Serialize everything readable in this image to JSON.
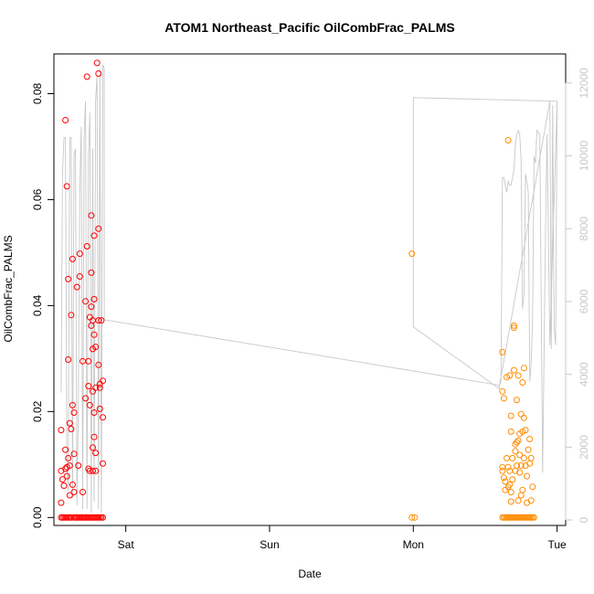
{
  "chart_data": {
    "type": "scatter",
    "title": "ATOM1 Northeast_Pacific OilCombFrac_PALMS",
    "xlabel": "Date",
    "ylabel": "OilCombFrac_PALMS",
    "x_ticks": [
      {
        "value": 2.0,
        "label": "Sat"
      },
      {
        "value": 3.0,
        "label": "Sun"
      },
      {
        "value": 4.0,
        "label": "Mon"
      },
      {
        "value": 5.0,
        "label": "Tue"
      }
    ],
    "xlim": [
      1.5,
      5.06
    ],
    "ylim": [
      -0.0015,
      0.0875
    ],
    "y_ticks": [
      0.0,
      0.02,
      0.04,
      0.06,
      0.08
    ],
    "y_tick_labels": [
      "0.00",
      "0.02",
      "0.04",
      "0.06",
      "0.08"
    ],
    "y2lim": [
      -150,
      12800
    ],
    "y2_ticks": [
      0,
      2000,
      4000,
      6000,
      8000,
      10000,
      12000
    ],
    "y2_tick_labels": [
      "0",
      "2000",
      "4000",
      "6000",
      "8000",
      "10000",
      "12000"
    ],
    "colors": {
      "series_early": "#ff0000",
      "series_late": "#ff8c00",
      "altitude": "#c8c8c8",
      "axis": "#000000",
      "axis_right": "#c8c8c8"
    },
    "series": [
      {
        "color_key": "series_early",
        "points": [
          [
            1.55,
            0.0165
          ],
          [
            1.55,
            0.0088
          ],
          [
            1.56,
            0.0072
          ],
          [
            1.55,
            0.0028
          ],
          [
            1.57,
            0.006
          ],
          [
            1.58,
            0.0092
          ],
          [
            1.58,
            0.0128
          ],
          [
            1.59,
            0.0095
          ],
          [
            1.59,
            0.0078
          ],
          [
            1.58,
            0.075
          ],
          [
            1.59,
            0.0625
          ],
          [
            1.6,
            0.0298
          ],
          [
            1.6,
            0.045
          ],
          [
            1.6,
            0.0112
          ],
          [
            1.61,
            0.0098
          ],
          [
            1.61,
            0.0042
          ],
          [
            1.61,
            0.0178
          ],
          [
            1.62,
            0.0167
          ],
          [
            1.62,
            0.0382
          ],
          [
            1.63,
            0.0488
          ],
          [
            1.63,
            0.0212
          ],
          [
            1.64,
            0.0198
          ],
          [
            1.63,
            0.0062
          ],
          [
            1.64,
            0.012
          ],
          [
            1.64,
            0.0048
          ],
          [
            1.66,
            0.0435
          ],
          [
            1.67,
            0.0098
          ],
          [
            1.68,
            0.0455
          ],
          [
            1.68,
            0.0498
          ],
          [
            1.7,
            0.0295
          ],
          [
            1.7,
            0.0048
          ],
          [
            1.72,
            0.0408
          ],
          [
            1.72,
            0.0225
          ],
          [
            1.73,
            0.0832
          ],
          [
            1.73,
            0.0512
          ],
          [
            1.74,
            0.0295
          ],
          [
            1.74,
            0.0248
          ],
          [
            1.74,
            0.0092
          ],
          [
            1.75,
            0.0378
          ],
          [
            1.75,
            0.0088
          ],
          [
            1.75,
            0.0212
          ],
          [
            1.76,
            0.057
          ],
          [
            1.76,
            0.0462
          ],
          [
            1.76,
            0.0398
          ],
          [
            1.76,
            0.0362
          ],
          [
            1.77,
            0.0372
          ],
          [
            1.77,
            0.0318
          ],
          [
            1.77,
            0.0238
          ],
          [
            1.77,
            0.0132
          ],
          [
            1.77,
            0.0088
          ],
          [
            1.78,
            0.0532
          ],
          [
            1.78,
            0.0412
          ],
          [
            1.78,
            0.0345
          ],
          [
            1.78,
            0.0198
          ],
          [
            1.78,
            0.0152
          ],
          [
            1.79,
            0.0322
          ],
          [
            1.79,
            0.0245
          ],
          [
            1.79,
            0.0122
          ],
          [
            1.79,
            0.0088
          ],
          [
            1.8,
            0.0858
          ],
          [
            1.81,
            0.0838
          ],
          [
            1.81,
            0.0545
          ],
          [
            1.81,
            0.0372
          ],
          [
            1.81,
            0.0288
          ],
          [
            1.82,
            0.0252
          ],
          [
            1.82,
            0.0245
          ],
          [
            1.82,
            0.0205
          ],
          [
            1.83,
            0.0372
          ],
          [
            1.84,
            0.0258
          ],
          [
            1.84,
            0.0102
          ],
          [
            1.84,
            0.0189
          ],
          [
            1.84,
            0.0
          ],
          [
            1.55,
            0.0
          ],
          [
            1.56,
            0.0
          ],
          [
            1.57,
            0.0
          ],
          [
            1.58,
            0.0
          ],
          [
            1.59,
            0.0
          ],
          [
            1.6,
            0.0
          ],
          [
            1.61,
            0.0
          ],
          [
            1.62,
            0.0
          ],
          [
            1.64,
            0.0
          ],
          [
            1.65,
            0.0
          ],
          [
            1.66,
            0.0
          ],
          [
            1.67,
            0.0
          ],
          [
            1.68,
            0.0
          ],
          [
            1.69,
            0.0
          ],
          [
            1.7,
            0.0
          ],
          [
            1.71,
            0.0
          ],
          [
            1.72,
            0.0
          ],
          [
            1.73,
            0.0
          ],
          [
            1.74,
            0.0
          ],
          [
            1.75,
            0.0
          ],
          [
            1.76,
            0.0
          ],
          [
            1.77,
            0.0
          ],
          [
            1.78,
            0.0
          ],
          [
            1.79,
            0.0
          ],
          [
            1.8,
            0.0
          ],
          [
            1.81,
            0.0
          ],
          [
            1.82,
            0.0
          ],
          [
            1.83,
            0.0
          ]
        ]
      },
      {
        "color_key": "series_late",
        "points": [
          [
            3.99,
            0.0498
          ],
          [
            3.99,
            0.0
          ],
          [
            4.01,
            0.0
          ],
          [
            4.62,
            0.0312
          ],
          [
            4.62,
            0.0238
          ],
          [
            4.63,
            0.0225
          ],
          [
            4.62,
            0.0095
          ],
          [
            4.62,
            0.0088
          ],
          [
            4.63,
            0.0075
          ],
          [
            4.64,
            0.0068
          ],
          [
            4.64,
            0.0052
          ],
          [
            4.65,
            0.0265
          ],
          [
            4.65,
            0.0112
          ],
          [
            4.66,
            0.0712
          ],
          [
            4.66,
            0.0095
          ],
          [
            4.66,
            0.0058
          ],
          [
            4.67,
            0.0268
          ],
          [
            4.67,
            0.0088
          ],
          [
            4.67,
            0.0062
          ],
          [
            4.68,
            0.0192
          ],
          [
            4.68,
            0.0162
          ],
          [
            4.68,
            0.0048
          ],
          [
            4.68,
            0.003
          ],
          [
            4.69,
            0.0112
          ],
          [
            4.69,
            0.0072
          ],
          [
            4.7,
            0.0358
          ],
          [
            4.7,
            0.0362
          ],
          [
            4.7,
            0.0278
          ],
          [
            4.71,
            0.0138
          ],
          [
            4.71,
            0.0125
          ],
          [
            4.71,
            0.0088
          ],
          [
            4.72,
            0.0222
          ],
          [
            4.72,
            0.0142
          ],
          [
            4.72,
            0.0098
          ],
          [
            4.73,
            0.0268
          ],
          [
            4.73,
            0.0145
          ],
          [
            4.73,
            0.0032
          ],
          [
            4.74,
            0.0158
          ],
          [
            4.74,
            0.0118
          ],
          [
            4.74,
            0.0085
          ],
          [
            4.75,
            0.0195
          ],
          [
            4.75,
            0.0098
          ],
          [
            4.75,
            0.0042
          ],
          [
            4.76,
            0.0255
          ],
          [
            4.76,
            0.0162
          ],
          [
            4.76,
            0.0052
          ],
          [
            4.77,
            0.0282
          ],
          [
            4.77,
            0.0188
          ],
          [
            4.77,
            0.0112
          ],
          [
            4.78,
            0.0165
          ],
          [
            4.78,
            0.0098
          ],
          [
            4.79,
            0.0078
          ],
          [
            4.79,
            0.0028
          ],
          [
            4.8,
            0.0128
          ],
          [
            4.81,
            0.0102
          ],
          [
            4.81,
            0.0148
          ],
          [
            4.82,
            0.0032
          ],
          [
            4.82,
            0.0112
          ],
          [
            4.83,
            0.0058
          ],
          [
            4.62,
            0.0
          ],
          [
            4.63,
            0.0
          ],
          [
            4.64,
            0.0
          ],
          [
            4.65,
            0.0
          ],
          [
            4.66,
            0.0
          ],
          [
            4.67,
            0.0
          ],
          [
            4.68,
            0.0
          ],
          [
            4.69,
            0.0
          ],
          [
            4.7,
            0.0
          ],
          [
            4.71,
            0.0
          ],
          [
            4.72,
            0.0
          ],
          [
            4.73,
            0.0
          ],
          [
            4.74,
            0.0
          ],
          [
            4.75,
            0.0
          ],
          [
            4.76,
            0.0
          ],
          [
            4.77,
            0.0
          ],
          [
            4.78,
            0.0
          ],
          [
            4.79,
            0.0
          ],
          [
            4.8,
            0.0
          ],
          [
            4.81,
            0.0
          ],
          [
            4.82,
            0.0
          ],
          [
            4.83,
            0.0
          ],
          [
            4.84,
            0.0
          ]
        ]
      }
    ],
    "altitude_line": [
      [
        1.55,
        3500
      ],
      [
        1.56,
        9500
      ],
      [
        1.57,
        10500
      ],
      [
        1.58,
        10500
      ],
      [
        1.59,
        1500
      ],
      [
        1.6,
        800
      ],
      [
        1.61,
        10500
      ],
      [
        1.62,
        10500
      ],
      [
        1.63,
        600
      ],
      [
        1.64,
        10000
      ],
      [
        1.65,
        10200
      ],
      [
        1.66,
        400
      ],
      [
        1.67,
        3000
      ],
      [
        1.68,
        9000
      ],
      [
        1.69,
        10800
      ],
      [
        1.7,
        300
      ],
      [
        1.71,
        10500
      ],
      [
        1.72,
        11500
      ],
      [
        1.73,
        300
      ],
      [
        1.74,
        10000
      ],
      [
        1.75,
        11200
      ],
      [
        1.76,
        200
      ],
      [
        1.77,
        10200
      ],
      [
        1.78,
        500
      ],
      [
        1.79,
        11500
      ],
      [
        1.8,
        12200
      ],
      [
        1.81,
        300
      ],
      [
        1.82,
        12400
      ],
      [
        1.83,
        200
      ],
      [
        1.84,
        12500
      ],
      [
        1.85,
        12400
      ],
      [
        1.85,
        5500
      ],
      [
        4.6,
        3700
      ],
      [
        4.6,
        3600
      ],
      [
        4.0,
        5300
      ],
      [
        4.0,
        11600
      ],
      [
        5.0,
        11500
      ],
      [
        4.95,
        4800
      ],
      [
        4.93,
        10600
      ],
      [
        4.92,
        8000
      ],
      [
        4.9,
        1300
      ],
      [
        4.88,
        10600
      ],
      [
        4.86,
        10700
      ],
      [
        4.85,
        9800
      ],
      [
        4.84,
        10000
      ],
      [
        4.83,
        5500
      ],
      [
        4.82,
        4300
      ],
      [
        4.81,
        3800
      ],
      [
        4.8,
        9000
      ],
      [
        4.79,
        9300
      ],
      [
        4.78,
        9500
      ],
      [
        4.77,
        6200
      ],
      [
        4.76,
        5800
      ],
      [
        4.75,
        9900
      ],
      [
        4.74,
        10600
      ],
      [
        4.73,
        10700
      ],
      [
        4.72,
        10600
      ],
      [
        4.71,
        10300
      ],
      [
        4.7,
        9600
      ],
      [
        4.68,
        9200
      ],
      [
        4.67,
        9200
      ],
      [
        4.66,
        9300
      ],
      [
        4.65,
        9000
      ],
      [
        4.64,
        9200
      ],
      [
        4.63,
        9400
      ],
      [
        4.62,
        9400
      ],
      [
        4.61,
        3800
      ],
      [
        4.6,
        3700
      ],
      [
        4.95,
        11500
      ],
      [
        4.96,
        4700
      ],
      [
        4.97,
        11400
      ],
      [
        4.98,
        5300
      ],
      [
        4.99,
        4800
      ],
      [
        5.0,
        11500
      ]
    ]
  }
}
